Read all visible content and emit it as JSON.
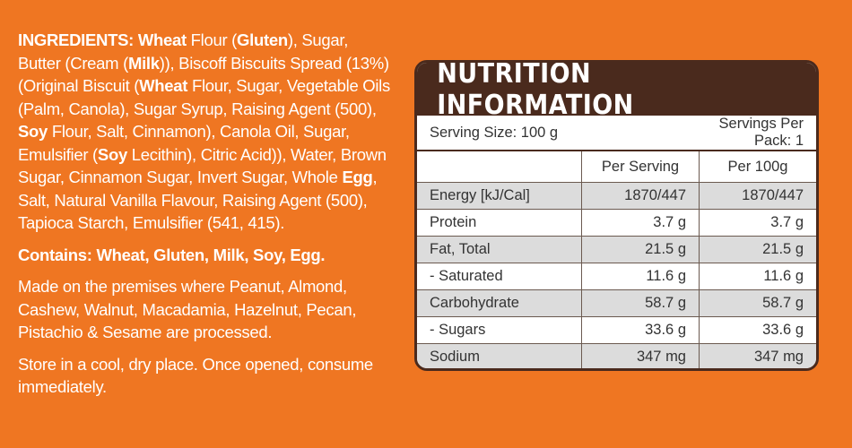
{
  "ingredients": {
    "segments": [
      {
        "text": "INGREDIENTS: Wheat",
        "bold": true
      },
      {
        "text": " Flour (",
        "bold": false
      },
      {
        "text": "Gluten",
        "bold": true
      },
      {
        "text": "), Sugar, Butter (Cream (",
        "bold": false
      },
      {
        "text": "Milk",
        "bold": true
      },
      {
        "text": ")), Biscoff Biscuits Spread (13%) (Original Biscuit (",
        "bold": false
      },
      {
        "text": "Wheat",
        "bold": true
      },
      {
        "text": " Flour, Sugar, Vegetable Oils (Palm, Canola), Sugar Syrup, Raising Agent (500), ",
        "bold": false
      },
      {
        "text": "Soy",
        "bold": true
      },
      {
        "text": " Flour, Salt, Cinnamon), Canola Oil, Sugar, Emulsifier (",
        "bold": false
      },
      {
        "text": "Soy",
        "bold": true
      },
      {
        "text": " Lecithin), Citric Acid)), Water, Brown Sugar, Cinnamon Sugar, Invert Sugar, Whole ",
        "bold": false
      },
      {
        "text": "Egg",
        "bold": true
      },
      {
        "text": ", Salt, Natural Vanilla Flavour, Raising Agent (500), Tapioca Starch, Emulsifier (541, 415).",
        "bold": false
      }
    ]
  },
  "contains": "Contains: Wheat, Gluten, Milk, Soy, Egg.",
  "premises": "Made on the premises where Peanut, Almond, Cashew, Walnut, Macadamia, Hazelnut, Pecan, Pistachio & Sesame are processed.",
  "storage": "Store in a cool, dry place. Once opened, consume immediately.",
  "nutrition": {
    "title": "NUTRITION INFORMATION",
    "serving_size": "Serving Size: 100 g",
    "servings_per_pack": "Servings Per Pack: 1",
    "col_per_serving": "Per Serving",
    "col_per_100g": "Per 100g",
    "rows": [
      {
        "label": "Energy [kJ/Cal]",
        "serving": "1870/447",
        "per100": "1870/447"
      },
      {
        "label": "Protein",
        "serving": "3.7 g",
        "per100": "3.7 g"
      },
      {
        "label": "Fat, Total",
        "serving": "21.5 g",
        "per100": "21.5 g"
      },
      {
        "label": "- Saturated",
        "serving": "11.6 g",
        "per100": "11.6 g"
      },
      {
        "label": "Carbohydrate",
        "serving": "58.7 g",
        "per100": "58.7 g"
      },
      {
        "label": "- Sugars",
        "serving": "33.6 g",
        "per100": "33.6 g"
      },
      {
        "label": "Sodium",
        "serving": "347 mg",
        "per100": "347 mg"
      }
    ]
  },
  "colors": {
    "background": "#ef7622",
    "panel_header": "#4a2a1d",
    "row_shade": "#dcdcdc"
  }
}
